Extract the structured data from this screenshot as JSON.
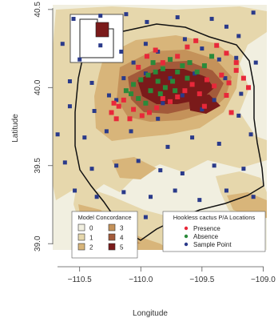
{
  "map": {
    "xlabel": "Longitude",
    "ylabel": "Latitude",
    "x_ticks": [
      {
        "value": -110.5,
        "label": "−110.5"
      },
      {
        "value": -110.0,
        "label": "−110.0"
      },
      {
        "value": -109.5,
        "label": "−109.5"
      },
      {
        "value": -109.0,
        "label": "−109.0"
      }
    ],
    "y_ticks": [
      {
        "value": 39.0,
        "label": "39.0"
      },
      {
        "value": 39.5,
        "label": "39.5"
      },
      {
        "value": 40.0,
        "label": "40.0"
      },
      {
        "value": 40.5,
        "label": "40.5"
      }
    ],
    "extent": {
      "lon": [
        -110.72,
        -108.97
      ],
      "lat": [
        38.96,
        40.53
      ]
    },
    "colors": {
      "background": "#f1efe0",
      "c1": "#e6d7ac",
      "c2": "#d8b57a",
      "c3": "#c4925a",
      "c4": "#a35a3a",
      "c5": "#7a1a1a",
      "presence": "#e8283a",
      "absence": "#2a8a3a",
      "sample": "#2a3a8a",
      "boundary": "#111111"
    },
    "points": {
      "sample": [
        [
          -110.55,
          40.44
        ],
        [
          -110.33,
          40.46
        ],
        [
          -110.12,
          40.47
        ],
        [
          -109.95,
          40.42
        ],
        [
          -109.7,
          40.45
        ],
        [
          -109.42,
          40.44
        ],
        [
          -109.3,
          40.39
        ],
        [
          -109.2,
          40.33
        ],
        [
          -109.08,
          40.48
        ],
        [
          -110.64,
          40.28
        ],
        [
          -110.5,
          40.18
        ],
        [
          -110.33,
          40.27
        ],
        [
          -110.16,
          40.23
        ],
        [
          -110.06,
          40.16
        ],
        [
          -109.96,
          40.28
        ],
        [
          -109.86,
          40.23
        ],
        [
          -109.64,
          40.31
        ],
        [
          -109.5,
          40.25
        ],
        [
          -109.36,
          40.18
        ],
        [
          -109.22,
          40.19
        ],
        [
          -109.06,
          40.16
        ],
        [
          -110.58,
          40.04
        ],
        [
          -110.4,
          40.03
        ],
        [
          -110.26,
          39.95
        ],
        [
          -109.96,
          40.09
        ],
        [
          -109.76,
          40.06
        ],
        [
          -109.56,
          40.09
        ],
        [
          -109.31,
          40.06
        ],
        [
          -109.18,
          39.96
        ],
        [
          -110.58,
          39.88
        ],
        [
          -110.38,
          39.85
        ],
        [
          -110.2,
          39.92
        ],
        [
          -110.08,
          39.72
        ],
        [
          -109.86,
          39.8
        ],
        [
          -109.5,
          39.86
        ],
        [
          -109.2,
          39.82
        ],
        [
          -110.68,
          39.7
        ],
        [
          -110.46,
          39.68
        ],
        [
          -110.28,
          39.72
        ],
        [
          -109.78,
          39.62
        ],
        [
          -109.58,
          39.68
        ],
        [
          -109.36,
          39.64
        ],
        [
          -109.1,
          39.7
        ],
        [
          -110.62,
          39.52
        ],
        [
          -110.4,
          39.48
        ],
        [
          -110.2,
          39.5
        ],
        [
          -110.02,
          39.53
        ],
        [
          -109.84,
          39.47
        ],
        [
          -109.66,
          39.45
        ],
        [
          -109.4,
          39.5
        ],
        [
          -109.16,
          39.48
        ],
        [
          -110.54,
          39.34
        ],
        [
          -110.36,
          39.3
        ],
        [
          -110.14,
          39.33
        ],
        [
          -109.92,
          39.3
        ],
        [
          -109.72,
          39.34
        ],
        [
          -109.52,
          39.28
        ],
        [
          -109.3,
          39.34
        ],
        [
          -109.08,
          39.3
        ],
        [
          -110.44,
          39.18
        ],
        [
          -110.2,
          39.13
        ],
        [
          -109.96,
          39.17
        ],
        [
          -109.76,
          39.12
        ],
        [
          -109.46,
          39.16
        ],
        [
          -109.24,
          39.11
        ],
        [
          -110.32,
          39.02
        ],
        [
          -110.1,
          39.02
        ],
        [
          -109.62,
          39.02
        ],
        [
          -109.82,
          39.9
        ],
        [
          -109.66,
          39.95
        ],
        [
          -110.14,
          40.06
        ],
        [
          -109.4,
          39.92
        ]
      ],
      "presence": [
        [
          -110.14,
          39.92
        ],
        [
          -110.18,
          39.88
        ],
        [
          -110.24,
          39.84
        ],
        [
          -110.06,
          39.86
        ],
        [
          -110.09,
          39.8
        ],
        [
          -109.99,
          39.82
        ],
        [
          -109.93,
          39.84
        ],
        [
          -109.87,
          39.87
        ],
        [
          -109.82,
          39.93
        ],
        [
          -109.76,
          39.91
        ],
        [
          -109.7,
          39.94
        ],
        [
          -109.64,
          39.98
        ],
        [
          -109.58,
          40.02
        ],
        [
          -109.52,
          39.96
        ],
        [
          -109.46,
          40.05
        ],
        [
          -109.4,
          40.01
        ],
        [
          -109.34,
          40.08
        ],
        [
          -109.28,
          40.03
        ],
        [
          -109.22,
          40.11
        ],
        [
          -109.16,
          40.06
        ],
        [
          -109.12,
          40.0
        ],
        [
          -109.26,
          39.84
        ],
        [
          -109.62,
          40.26
        ],
        [
          -109.55,
          40.3
        ],
        [
          -109.7,
          40.2
        ],
        [
          -109.82,
          40.16
        ],
        [
          -109.88,
          40.24
        ],
        [
          -109.95,
          40.2
        ],
        [
          -110.02,
          40.13
        ],
        [
          -109.3,
          40.22
        ],
        [
          -109.22,
          40.16
        ],
        [
          -109.38,
          40.27
        ],
        [
          -110.22,
          39.9
        ],
        [
          -110.2,
          39.8
        ],
        [
          -109.48,
          39.88
        ],
        [
          -109.3,
          39.95
        ]
      ],
      "absence": [
        [
          -110.12,
          39.98
        ],
        [
          -110.06,
          40.02
        ],
        [
          -110.0,
          40.05
        ],
        [
          -109.94,
          40.08
        ],
        [
          -109.88,
          40.1
        ],
        [
          -109.82,
          40.12
        ],
        [
          -109.86,
          40.04
        ],
        [
          -109.92,
          39.98
        ],
        [
          -110.02,
          39.93
        ],
        [
          -109.8,
          40.0
        ],
        [
          -109.74,
          40.04
        ],
        [
          -109.7,
          40.1
        ],
        [
          -109.66,
          40.14
        ],
        [
          -109.6,
          40.16
        ],
        [
          -109.76,
          40.18
        ],
        [
          -109.9,
          40.16
        ],
        [
          -109.96,
          39.9
        ],
        [
          -110.08,
          39.96
        ],
        [
          -109.84,
          39.96
        ],
        [
          -109.72,
          39.98
        ],
        [
          -109.62,
          40.06
        ],
        [
          -109.54,
          40.1
        ],
        [
          -109.48,
          40.14
        ],
        [
          -109.42,
          40.2
        ]
      ]
    },
    "concordance_legend": {
      "title": "Model Concordance",
      "items": [
        {
          "label": "0",
          "color": "#f1efe0"
        },
        {
          "label": "1",
          "color": "#e6d7ac"
        },
        {
          "label": "2",
          "color": "#d8b57a"
        },
        {
          "label": "3",
          "color": "#c4925a"
        },
        {
          "label": "4",
          "color": "#a35a3a"
        },
        {
          "label": "5",
          "color": "#7a1a1a"
        }
      ]
    },
    "points_legend": {
      "title": "Hookless cactus P/A Locations",
      "items": [
        {
          "label": "Presence",
          "color": "#e8283a"
        },
        {
          "label": "Absence",
          "color": "#2a8a3a"
        },
        {
          "label": "Sample Point",
          "color": "#2a3a8a"
        }
      ]
    }
  }
}
